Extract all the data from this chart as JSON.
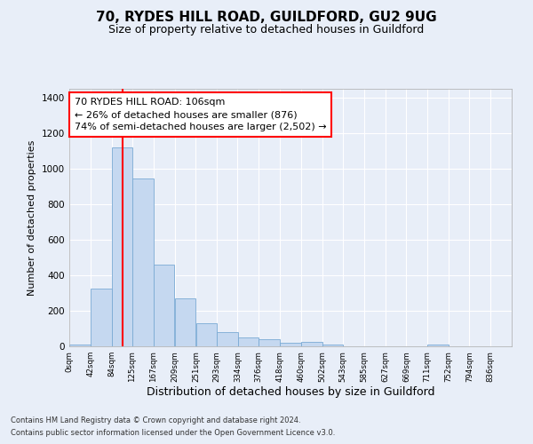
{
  "title1": "70, RYDES HILL ROAD, GUILDFORD, GU2 9UG",
  "title2": "Size of property relative to detached houses in Guildford",
  "xlabel": "Distribution of detached houses by size in Guildford",
  "ylabel": "Number of detached properties",
  "footnote1": "Contains HM Land Registry data © Crown copyright and database right 2024.",
  "footnote2": "Contains public sector information licensed under the Open Government Licence v3.0.",
  "bar_color": "#c5d8f0",
  "bar_edge_color": "#7aaad4",
  "redline_x": 106,
  "annotation_text": "70 RYDES HILL ROAD: 106sqm\n← 26% of detached houses are smaller (876)\n74% of semi-detached houses are larger (2,502) →",
  "bins_left": [
    0,
    42,
    84,
    125,
    167,
    209,
    251,
    293,
    334,
    376,
    418,
    460,
    502,
    543,
    585,
    627,
    669,
    711,
    752,
    794
  ],
  "bin_width": 42,
  "bar_heights": [
    10,
    325,
    1120,
    945,
    460,
    270,
    128,
    78,
    50,
    38,
    20,
    25,
    12,
    2,
    2,
    2,
    0,
    10,
    0,
    0
  ],
  "xlim": [
    0,
    878
  ],
  "ylim": [
    0,
    1450
  ],
  "yticks": [
    0,
    200,
    400,
    600,
    800,
    1000,
    1200,
    1400
  ],
  "xtick_labels": [
    "0sqm",
    "42sqm",
    "84sqm",
    "125sqm",
    "167sqm",
    "209sqm",
    "251sqm",
    "293sqm",
    "334sqm",
    "376sqm",
    "418sqm",
    "460sqm",
    "502sqm",
    "543sqm",
    "585sqm",
    "627sqm",
    "669sqm",
    "711sqm",
    "752sqm",
    "794sqm",
    "836sqm"
  ],
  "xtick_positions": [
    0,
    42,
    84,
    125,
    167,
    209,
    251,
    293,
    334,
    376,
    418,
    460,
    502,
    543,
    585,
    627,
    669,
    711,
    752,
    794,
    836
  ],
  "bg_color": "#e8eef8",
  "grid_color": "#ffffff",
  "title1_fontsize": 11,
  "title2_fontsize": 9,
  "ylabel_fontsize": 8,
  "xlabel_fontsize": 9,
  "footnote_fontsize": 6,
  "annot_fontsize": 8
}
